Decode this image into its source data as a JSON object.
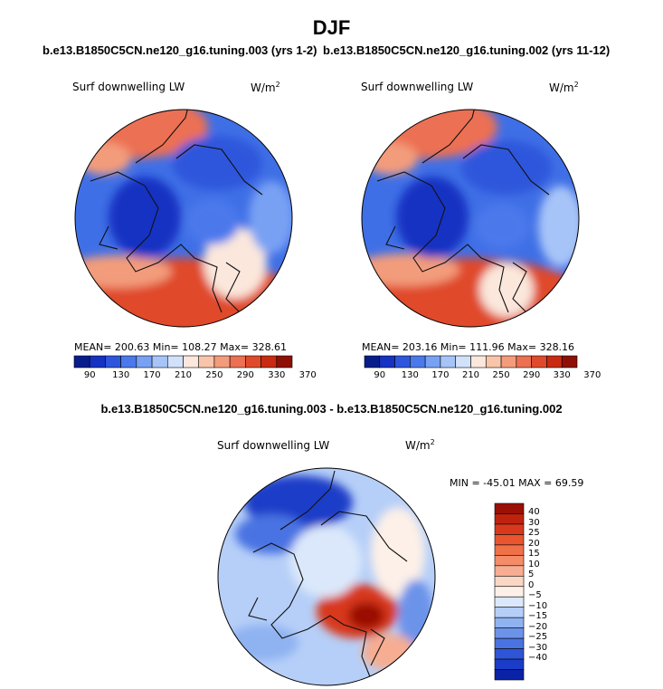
{
  "figure": {
    "title": "DJF",
    "left_subtitle": "b.e13.B1850C5CN.ne120_g16.tuning.003 (yrs 1-2)",
    "right_subtitle": "b.e13.B1850C5CN.ne120_g16.tuning.002 (yrs 11-12)",
    "diff_title": "b.e13.B1850C5CN.ne120_g16.tuning.003 - b.e13.B1850C5CN.ne120_g16.tuning.002"
  },
  "chart_data": [
    {
      "type": "heatmap",
      "panel": "left",
      "label": "Surf downwelling LW",
      "units_text": "W/m",
      "units_sup": "2",
      "stats_text": "MEAN= 200.63   Min= 108.27   Max= 328.61",
      "mean": 200.63,
      "min": 108.27,
      "max": 328.61,
      "colorbar_ticks": [
        "90",
        "130",
        "170",
        "210",
        "250",
        "290",
        "330",
        "370"
      ],
      "colorbar_colors": [
        "#081d8c",
        "#1632c2",
        "#2e56dc",
        "#4b79ec",
        "#78a1f4",
        "#a7c4f8",
        "#d2e1fa",
        "#fbe7dc",
        "#f8c4aa",
        "#f39c7c",
        "#ec7052",
        "#e04a2c",
        "#c82b12",
        "#8e1005"
      ]
    },
    {
      "type": "heatmap",
      "panel": "right",
      "label": "Surf downwelling LW",
      "units_text": "W/m",
      "units_sup": "2",
      "stats_text": "MEAN= 203.16   Min= 111.96   Max= 328.16",
      "mean": 203.16,
      "min": 111.96,
      "max": 328.16,
      "colorbar_ticks": [
        "90",
        "130",
        "170",
        "210",
        "250",
        "290",
        "330",
        "370"
      ],
      "colorbar_colors": [
        "#081d8c",
        "#1632c2",
        "#2e56dc",
        "#4b79ec",
        "#78a1f4",
        "#a7c4f8",
        "#d2e1fa",
        "#fbe7dc",
        "#f8c4aa",
        "#f39c7c",
        "#ec7052",
        "#e04a2c",
        "#c82b12",
        "#8e1005"
      ]
    },
    {
      "type": "heatmap",
      "panel": "difference",
      "label": "Surf downwelling LW",
      "units_text": "W/m",
      "units_sup": "2",
      "stats_text": "MIN = -45.01  MAX =  69.59",
      "min": -45.01,
      "max": 69.59,
      "colorbar_ticks": [
        "40",
        "30",
        "25",
        "20",
        "15",
        "10",
        "5",
        "0",
        "−5",
        "−10",
        "−15",
        "−20",
        "−25",
        "−30",
        "−40"
      ],
      "colorbar_colors": [
        "#9a1005",
        "#c0230d",
        "#d8391c",
        "#e9552f",
        "#f07048",
        "#f48c68",
        "#f6ad91",
        "#fad6c4",
        "#fdf0e8",
        "#dbe8fb",
        "#b6cff8",
        "#8fb2f1",
        "#6c93ea",
        "#4a73e2",
        "#2f55d6",
        "#1a3cc8",
        "#0a22a6"
      ]
    }
  ]
}
